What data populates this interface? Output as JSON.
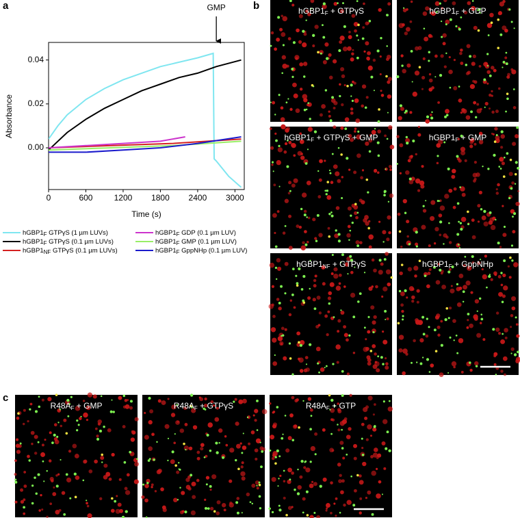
{
  "panel_labels": [
    "a",
    "b",
    "c"
  ],
  "chart_data": {
    "type": "line",
    "xlabel": "Time (s)",
    "ylabel": "Absorbance",
    "xlim": [
      0,
      3150
    ],
    "ylim": [
      -0.019,
      0.048
    ],
    "xticks": [
      0,
      600,
      1200,
      1800,
      2400,
      3000
    ],
    "yticks": [
      {
        "value": 0,
        "label": "0.00"
      },
      {
        "value": 0.02,
        "label": "0.02"
      },
      {
        "value": 0.04,
        "label": "0.04"
      }
    ],
    "annotation": {
      "text": "GMP",
      "x": 2700
    },
    "series": [
      {
        "name": {
          "text": "hGBP1",
          "sub": "F",
          "tail": " GTPγS (1 µm LUVs)"
        },
        "color": "#7fe6f0",
        "x": [
          0,
          150,
          300,
          600,
          900,
          1200,
          1500,
          1800,
          2100,
          2400,
          2650,
          2665,
          2700,
          2900,
          3100
        ],
        "values": [
          0.004,
          0.01,
          0.015,
          0.022,
          0.027,
          0.031,
          0.034,
          0.037,
          0.039,
          0.041,
          0.043,
          -0.005,
          -0.006,
          -0.013,
          -0.018
        ]
      },
      {
        "name": {
          "text": "hGBP1",
          "sub": "F",
          "tail": " GTPγS (0.1 µm LUVs)"
        },
        "color": "#000000",
        "x": [
          0,
          300,
          600,
          900,
          1200,
          1500,
          1800,
          2100,
          2400,
          2700,
          3100
        ],
        "values": [
          -0.001,
          0.007,
          0.013,
          0.018,
          0.022,
          0.026,
          0.029,
          0.032,
          0.034,
          0.037,
          0.04
        ]
      },
      {
        "name": {
          "text": "hGBP1",
          "sub": "NF",
          "tail": " GTPγS (0.1 µm LUVs)"
        },
        "color": "#d42020",
        "x": [
          0,
          1000,
          2000,
          3100
        ],
        "values": [
          0,
          0.001,
          0.002,
          0.004
        ]
      },
      {
        "name": {
          "text": "hGBP1",
          "sub": "F",
          "tail": " GDP (0.1 µm LUV)"
        },
        "color": "#cc33cc",
        "x": [
          0,
          600,
          1200,
          1800,
          2200
        ],
        "values": [
          0,
          0.001,
          0.002,
          0.003,
          0.005
        ]
      },
      {
        "name": {
          "text": "hGBP1",
          "sub": "F",
          "tail": " GMP (0.1 µm LUV)"
        },
        "color": "#99ee66",
        "x": [
          0,
          1000,
          2000,
          3100
        ],
        "values": [
          -0.001,
          0,
          0.001,
          0.003
        ]
      },
      {
        "name": {
          "text": "hGBP1",
          "sub": "F",
          "tail": " GppNHp (0.1 µm LUV)"
        },
        "color": "#1a1acc",
        "x": [
          0,
          600,
          1200,
          1800,
          2400,
          3100
        ],
        "values": [
          -0.002,
          -0.002,
          -0.001,
          0,
          0.002,
          0.005
        ]
      }
    ]
  },
  "images_b": [
    {
      "text": "hGBP1",
      "sub": "F",
      "tail": " + GTPγS"
    },
    {
      "text": "hGBP1",
      "sub": "F",
      "tail": " + GDP"
    },
    {
      "text": "hGBP1",
      "sub": "F",
      "tail": " + GTPγS + GMP"
    },
    {
      "text": "hGBP1",
      "sub": "F",
      "tail": " + GMP"
    },
    {
      "text": "hGBP1",
      "sub": "NF",
      "tail": " + GTPγS"
    },
    {
      "text": "hGBP1",
      "sub": "F",
      "tail": " + GppNHp"
    }
  ],
  "images_c": [
    {
      "text": "R48A",
      "sub": "F",
      "tail": " + GMP"
    },
    {
      "text": "R48A",
      "sub": "F",
      "tail": " + GTPγS"
    },
    {
      "text": "R48A",
      "sub": "F",
      "tail": " + GTP"
    }
  ]
}
